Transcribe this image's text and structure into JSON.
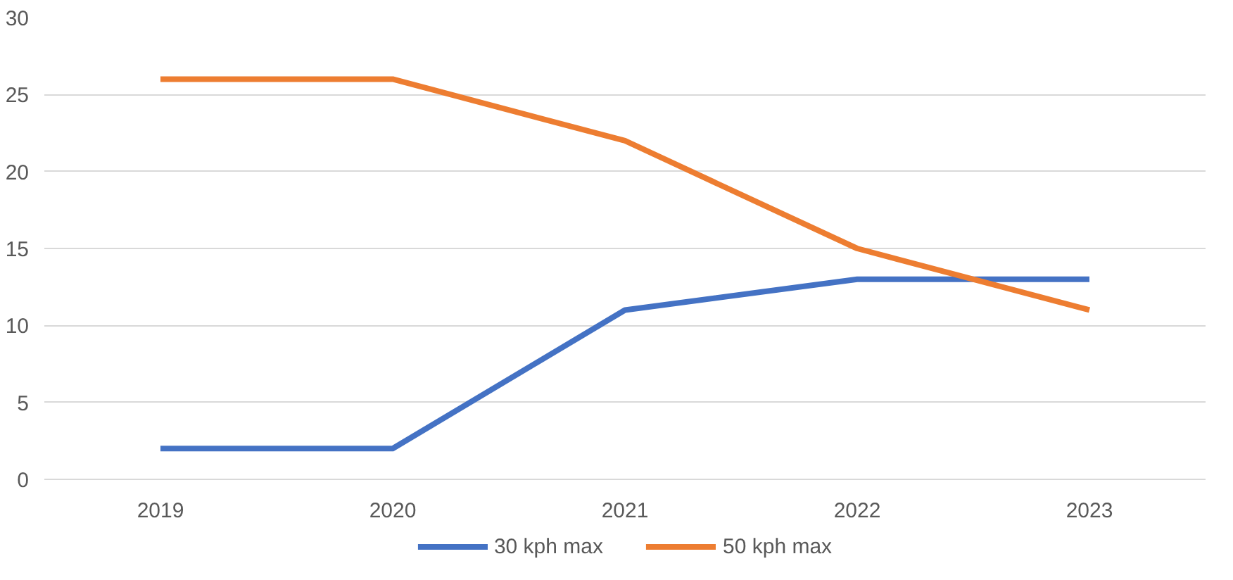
{
  "chart_data": {
    "type": "line",
    "categories": [
      "2019",
      "2020",
      "2021",
      "2022",
      "2023"
    ],
    "series": [
      {
        "name": "30 kph max",
        "color": "#4472c4",
        "values": [
          2,
          2,
          11,
          13,
          13
        ]
      },
      {
        "name": "50 kph max",
        "color": "#ed7d31",
        "values": [
          26,
          26,
          22,
          15,
          11
        ]
      }
    ],
    "ylim": [
      0,
      30
    ],
    "yticks": [
      0,
      5,
      10,
      15,
      20,
      25,
      30
    ],
    "grid": "y",
    "legend": "bottom",
    "marker": "none",
    "line_style": "solid"
  }
}
